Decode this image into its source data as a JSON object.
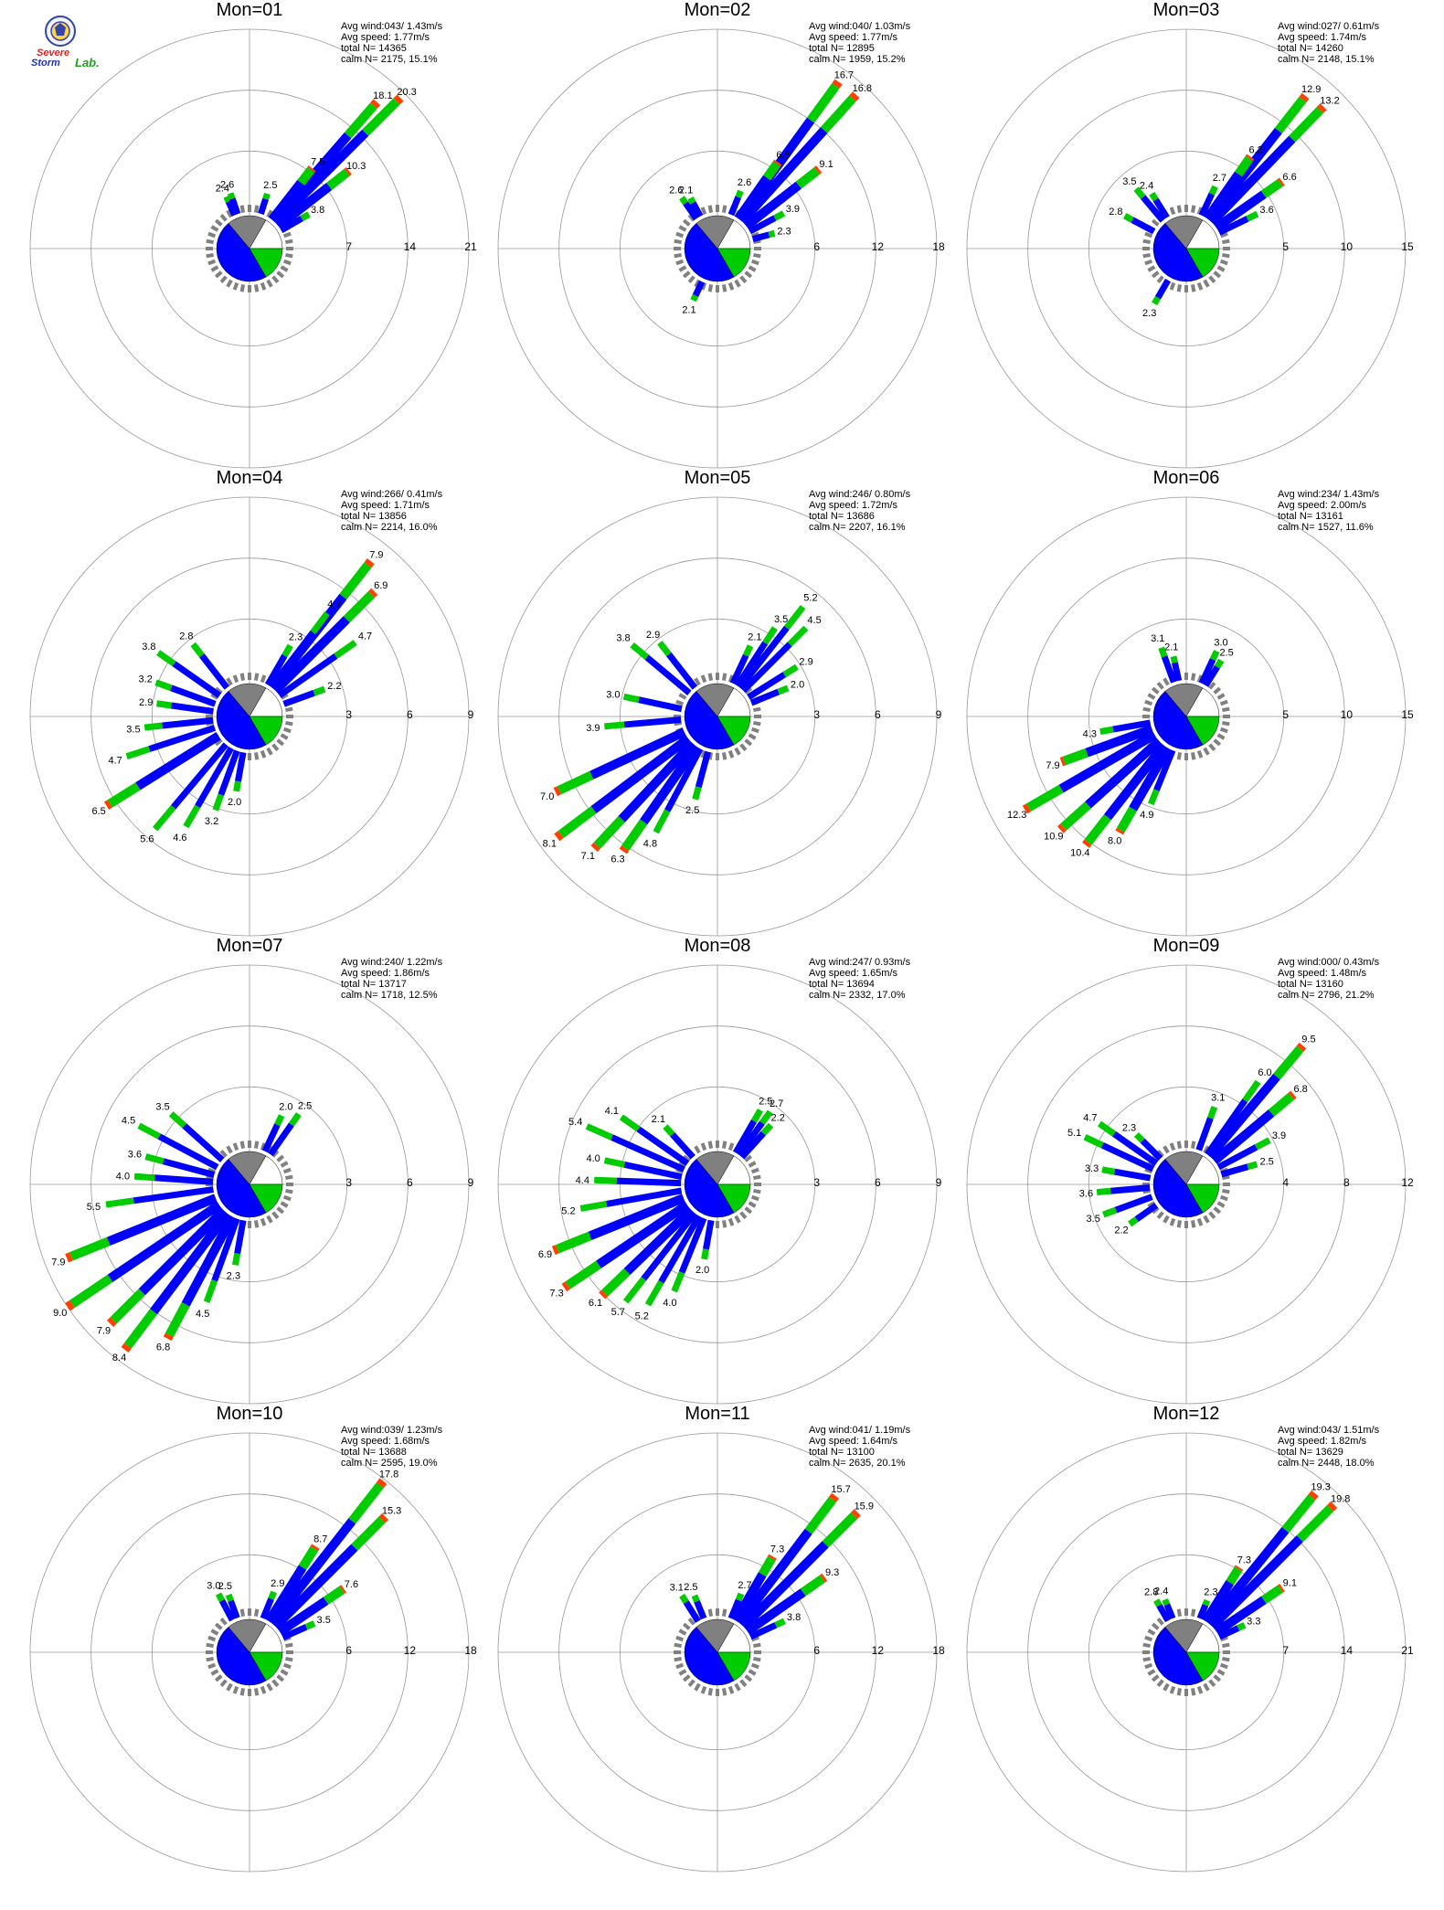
{
  "logo": {
    "line1": "Severe",
    "line2": "Storm",
    "line3": "Lab."
  },
  "colors": {
    "calm_slice": "#808080",
    "bar_blue": "#0000ff",
    "bar_green": "#00cc00",
    "bar_red": "#ff4000",
    "bar_gray": "#808080",
    "grid": "#999999",
    "text": "#000000"
  },
  "stats_labels": {
    "avg_wind": "Avg wind:",
    "avg_speed": "Avg speed:",
    "total_n": "total N=",
    "calm_n": "calm N="
  },
  "chart_data": [
    {
      "type": "windrose",
      "title": "Mon=01",
      "avg_wind": "043/ 1.43m/s",
      "avg_speed": "1.77m/s",
      "total_n": "14365",
      "calm_n": "2175,  15.1%",
      "rings": [
        "7",
        "14",
        "21"
      ],
      "rmax": 21,
      "labeled": [
        {
          "dir": 41,
          "value": 18.1
        },
        {
          "dir": 45,
          "value": 20.3
        },
        {
          "dir": 38,
          "value": 7.5
        },
        {
          "dir": 52,
          "value": 10.3
        },
        {
          "dir": 60,
          "value": 3.8
        },
        {
          "dir": 18,
          "value": 2.5
        },
        {
          "dir": -24,
          "value": 2.4
        },
        {
          "dir": -19,
          "value": 2.6
        }
      ]
    },
    {
      "type": "windrose",
      "title": "Mon=02",
      "avg_wind": "040/ 1.03m/s",
      "avg_speed": "1.77m/s",
      "total_n": "12895",
      "calm_n": "1959,  15.2%",
      "rings": [
        "6",
        "12",
        "18"
      ],
      "rmax": 18,
      "labeled": [
        {
          "dir": 36,
          "value": 16.7
        },
        {
          "dir": 42,
          "value": 16.8
        },
        {
          "dir": 35,
          "value": 6.8
        },
        {
          "dir": 52,
          "value": 9.1
        },
        {
          "dir": 62,
          "value": 3.9
        },
        {
          "dir": 75,
          "value": 2.3
        },
        {
          "dir": 22,
          "value": 2.6
        },
        {
          "dir": -35,
          "value": 2.6
        },
        {
          "dir": -28,
          "value": 2.1
        },
        {
          "dir": -155,
          "value": 2.1
        }
      ]
    },
    {
      "type": "windrose",
      "title": "Mon=03",
      "avg_wind": "027/ 0.61m/s",
      "avg_speed": "1.74m/s",
      "total_n": "14260",
      "calm_n": "2148,  15.1%",
      "rings": [
        "5",
        "10",
        "15"
      ],
      "rmax": 15,
      "labeled": [
        {
          "dir": 38,
          "value": 12.9
        },
        {
          "dir": 44,
          "value": 13.2
        },
        {
          "dir": 35,
          "value": 6.2
        },
        {
          "dir": 55,
          "value": 6.6
        },
        {
          "dir": 64,
          "value": 3.6
        },
        {
          "dir": 25,
          "value": 2.7
        },
        {
          "dir": -40,
          "value": 3.5
        },
        {
          "dir": -32,
          "value": 2.4
        },
        {
          "dir": -62,
          "value": 2.8
        },
        {
          "dir": -150,
          "value": 2.3
        }
      ]
    },
    {
      "type": "windrose",
      "title": "Mon=04",
      "avg_wind": "266/ 0.41m/s",
      "avg_speed": "1.71m/s",
      "total_n": "13856",
      "calm_n": "2214,  16.0%",
      "rings": [
        "3",
        "6",
        "9"
      ],
      "rmax": 9,
      "labeled": [
        {
          "dir": 38,
          "value": 7.9
        },
        {
          "dir": 45,
          "value": 6.9
        },
        {
          "dir": 37,
          "value": 4.7
        },
        {
          "dir": 55,
          "value": 4.7
        },
        {
          "dir": 70,
          "value": 2.2
        },
        {
          "dir": 30,
          "value": 2.3
        },
        {
          "dir": -55,
          "value": 3.8
        },
        {
          "dir": -38,
          "value": 2.8
        },
        {
          "dir": -70,
          "value": 3.2
        },
        {
          "dir": -82,
          "value": 2.9
        },
        {
          "dir": -96,
          "value": 3.5
        },
        {
          "dir": -108,
          "value": 4.7
        },
        {
          "dir": -122,
          "value": 6.5
        },
        {
          "dir": -140,
          "value": 5.6
        },
        {
          "dir": -150,
          "value": 4.6
        },
        {
          "dir": -160,
          "value": 3.2
        },
        {
          "dir": -170,
          "value": 2.0
        }
      ]
    },
    {
      "type": "windrose",
      "title": "Mon=05",
      "avg_wind": "246/ 0.80m/s",
      "avg_speed": "1.72m/s",
      "total_n": "13686",
      "calm_n": "2207,  16.1%",
      "rings": [
        "3",
        "6",
        "9"
      ],
      "rmax": 9,
      "labeled": [
        {
          "dir": 38,
          "value": 5.2
        },
        {
          "dir": 45,
          "value": 4.5
        },
        {
          "dir": 33,
          "value": 3.5
        },
        {
          "dir": 58,
          "value": 2.9
        },
        {
          "dir": 68,
          "value": 2.0
        },
        {
          "dir": 25,
          "value": 2.1
        },
        {
          "dir": -50,
          "value": 3.8
        },
        {
          "dir": -38,
          "value": 2.9
        },
        {
          "dir": -78,
          "value": 3.0
        },
        {
          "dir": -95,
          "value": 3.9
        },
        {
          "dir": -115,
          "value": 7.0
        },
        {
          "dir": -127,
          "value": 8.1
        },
        {
          "dir": -137,
          "value": 7.1
        },
        {
          "dir": -145,
          "value": 6.3
        },
        {
          "dir": -152,
          "value": 4.8
        },
        {
          "dir": -165,
          "value": 2.5
        }
      ]
    },
    {
      "type": "windrose",
      "title": "Mon=06",
      "avg_wind": "234/ 1.43m/s",
      "avg_speed": "2.00m/s",
      "total_n": "13161",
      "calm_n": "1527,  11.6%",
      "rings": [
        "5",
        "10",
        "15"
      ],
      "rmax": 15,
      "labeled": [
        {
          "dir": 25,
          "value": 3.0
        },
        {
          "dir": 32,
          "value": 2.5
        },
        {
          "dir": -20,
          "value": 3.1
        },
        {
          "dir": -12,
          "value": 2.1
        },
        {
          "dir": -100,
          "value": 4.3
        },
        {
          "dir": -110,
          "value": 7.9
        },
        {
          "dir": -120,
          "value": 12.3
        },
        {
          "dir": -132,
          "value": 10.9
        },
        {
          "dir": -142,
          "value": 10.4
        },
        {
          "dir": -150,
          "value": 8.0
        },
        {
          "dir": -158,
          "value": 4.9
        }
      ]
    },
    {
      "type": "windrose",
      "title": "Mon=07",
      "avg_wind": "240/ 1.22m/s",
      "avg_speed": "1.86m/s",
      "total_n": "13717",
      "calm_n": "1718,  12.5%",
      "rings": [
        "3",
        "6",
        "9"
      ],
      "rmax": 9,
      "labeled": [
        {
          "dir": 25,
          "value": 2.0
        },
        {
          "dir": 35,
          "value": 2.5
        },
        {
          "dir": -48,
          "value": 3.5
        },
        {
          "dir": -62,
          "value": 4.5
        },
        {
          "dir": -75,
          "value": 3.6
        },
        {
          "dir": -86,
          "value": 4.0
        },
        {
          "dir": -98,
          "value": 5.5
        },
        {
          "dir": -112,
          "value": 7.9
        },
        {
          "dir": -124,
          "value": 9.0
        },
        {
          "dir": -135,
          "value": 7.9
        },
        {
          "dir": -143,
          "value": 8.4
        },
        {
          "dir": -152,
          "value": 6.8
        },
        {
          "dir": -160,
          "value": 4.5
        },
        {
          "dir": -170,
          "value": 2.3
        }
      ]
    },
    {
      "type": "windrose",
      "title": "Mon=08",
      "avg_wind": "247/ 0.93m/s",
      "avg_speed": "1.65m/s",
      "total_n": "13694",
      "calm_n": "2332,  17.0%",
      "rings": [
        "3",
        "6",
        "9"
      ],
      "rmax": 9,
      "labeled": [
        {
          "dir": 30,
          "value": 2.5
        },
        {
          "dir": 36,
          "value": 2.7
        },
        {
          "dir": 42,
          "value": 2.2
        },
        {
          "dir": -55,
          "value": 4.1
        },
        {
          "dir": -66,
          "value": 5.4
        },
        {
          "dir": -42,
          "value": 2.1
        },
        {
          "dir": -78,
          "value": 4.0
        },
        {
          "dir": -88,
          "value": 4.4
        },
        {
          "dir": -100,
          "value": 5.2
        },
        {
          "dir": -112,
          "value": 6.9
        },
        {
          "dir": -124,
          "value": 7.3
        },
        {
          "dir": -134,
          "value": 6.1
        },
        {
          "dir": -142,
          "value": 5.7
        },
        {
          "dir": -150,
          "value": 5.2
        },
        {
          "dir": -158,
          "value": 4.0
        },
        {
          "dir": -170,
          "value": 2.0
        }
      ]
    },
    {
      "type": "windrose",
      "title": "Mon=09",
      "avg_wind": "000/ 0.43m/s",
      "avg_speed": "1.48m/s",
      "total_n": "13160",
      "calm_n": "2796,  21.2%",
      "rings": [
        "4",
        "8",
        "12"
      ],
      "rmax": 12,
      "labeled": [
        {
          "dir": 40,
          "value": 9.5
        },
        {
          "dir": 35,
          "value": 6.0
        },
        {
          "dir": 50,
          "value": 6.8
        },
        {
          "dir": 62,
          "value": 3.9
        },
        {
          "dir": 74,
          "value": 2.5
        },
        {
          "dir": 20,
          "value": 3.1
        },
        {
          "dir": -55,
          "value": 4.7
        },
        {
          "dir": -65,
          "value": 5.1
        },
        {
          "dir": -45,
          "value": 2.3
        },
        {
          "dir": -80,
          "value": 3.3
        },
        {
          "dir": -95,
          "value": 3.6
        },
        {
          "dir": -110,
          "value": 3.5
        },
        {
          "dir": -125,
          "value": 2.2
        }
      ]
    },
    {
      "type": "windrose",
      "title": "Mon=10",
      "avg_wind": "039/ 1.23m/s",
      "avg_speed": "1.68m/s",
      "total_n": "13688",
      "calm_n": "2595,  19.0%",
      "rings": [
        "6",
        "12",
        "18"
      ],
      "rmax": 18,
      "labeled": [
        {
          "dir": 38,
          "value": 17.8
        },
        {
          "dir": 45,
          "value": 15.3
        },
        {
          "dir": 32,
          "value": 8.7
        },
        {
          "dir": 56,
          "value": 7.6
        },
        {
          "dir": 66,
          "value": 3.5
        },
        {
          "dir": 22,
          "value": 2.9
        },
        {
          "dir": -28,
          "value": 3.0
        },
        {
          "dir": -20,
          "value": 2.5
        }
      ]
    },
    {
      "type": "windrose",
      "title": "Mon=11",
      "avg_wind": "041/ 1.19m/s",
      "avg_speed": "1.64m/s",
      "total_n": "13100",
      "calm_n": "2635,  20.1%",
      "rings": [
        "6",
        "12",
        "18"
      ],
      "rmax": 18,
      "labeled": [
        {
          "dir": 37,
          "value": 15.7
        },
        {
          "dir": 45,
          "value": 15.9
        },
        {
          "dir": 30,
          "value": 7.3
        },
        {
          "dir": 55,
          "value": 9.3
        },
        {
          "dir": 65,
          "value": 3.8
        },
        {
          "dir": 22,
          "value": 2.7
        },
        {
          "dir": -32,
          "value": 3.1
        },
        {
          "dir": -22,
          "value": 2.5
        }
      ]
    },
    {
      "type": "windrose",
      "title": "Mon=12",
      "avg_wind": "043/ 1.51m/s",
      "avg_speed": "1.82m/s",
      "total_n": "13629",
      "calm_n": "2448,  18.0%",
      "rings": [
        "7",
        "14",
        "21"
      ],
      "rmax": 21,
      "labeled": [
        {
          "dir": 39,
          "value": 19.3
        },
        {
          "dir": 45,
          "value": 19.8
        },
        {
          "dir": 32,
          "value": 7.3
        },
        {
          "dir": 56,
          "value": 9.1
        },
        {
          "dir": 65,
          "value": 3.3
        },
        {
          "dir": 22,
          "value": 2.3
        },
        {
          "dir": -30,
          "value": 2.8
        },
        {
          "dir": -22,
          "value": 2.4
        }
      ]
    }
  ]
}
